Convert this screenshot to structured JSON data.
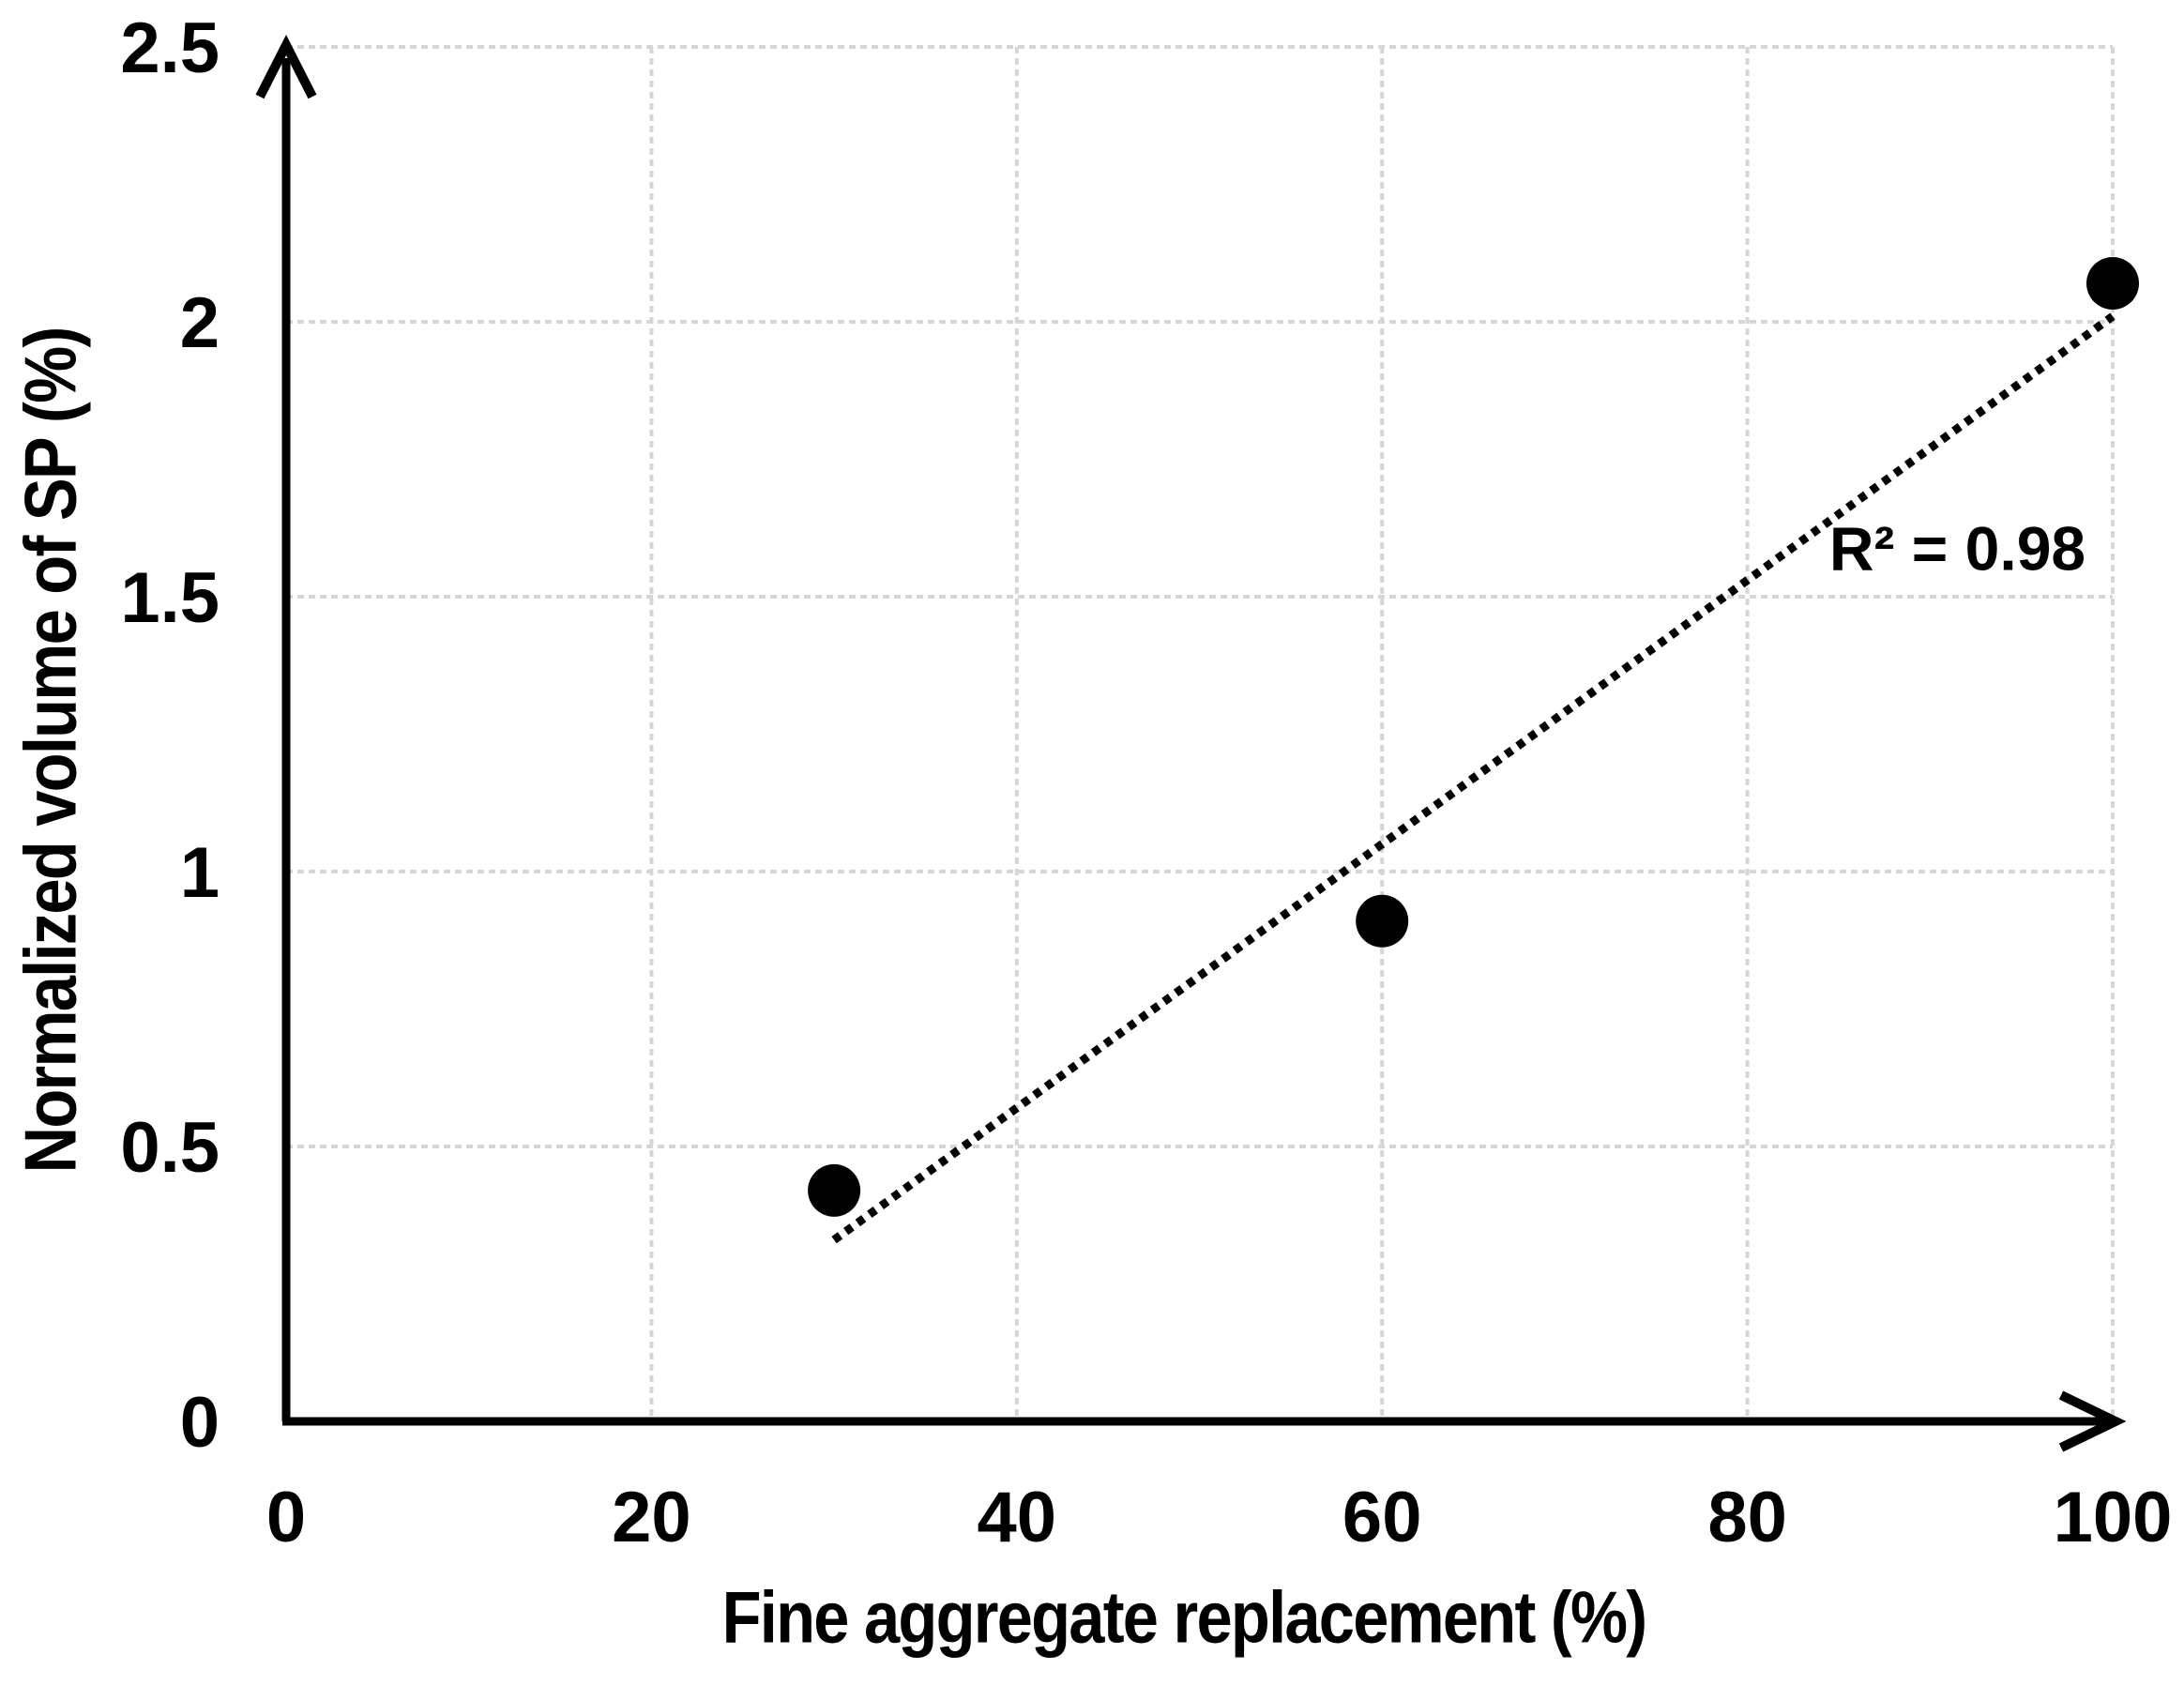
{
  "chart_data": {
    "type": "scatter",
    "xlabel": "Fine aggregate replacement (%)",
    "ylabel": "Normalized volume of SP (%)",
    "xlim": [
      0,
      100
    ],
    "ylim": [
      0,
      2.5
    ],
    "x_ticks": [
      0,
      20,
      40,
      60,
      80,
      100
    ],
    "y_ticks": [
      0,
      0.5,
      1,
      1.5,
      2,
      2.5
    ],
    "grid": true,
    "legend": "none",
    "axis_arrows": true,
    "points": [
      {
        "x": 30,
        "y": 0.42
      },
      {
        "x": 60,
        "y": 0.91
      },
      {
        "x": 100,
        "y": 2.07
      }
    ],
    "trendline": {
      "style": "dotted",
      "from": {
        "x": 30,
        "y": 0.33
      },
      "to": {
        "x": 100,
        "y": 2.01
      },
      "annotation": "R² = 0.98",
      "annotation_anchor": {
        "x": 91.5,
        "y": 1.59
      }
    },
    "marker": {
      "shape": "circle",
      "color": "#000000"
    },
    "colors": {
      "axis": "#000000",
      "grid": "#d6d6d6",
      "text": "#000000",
      "trendline": "#000000",
      "background": "#ffffff"
    }
  }
}
